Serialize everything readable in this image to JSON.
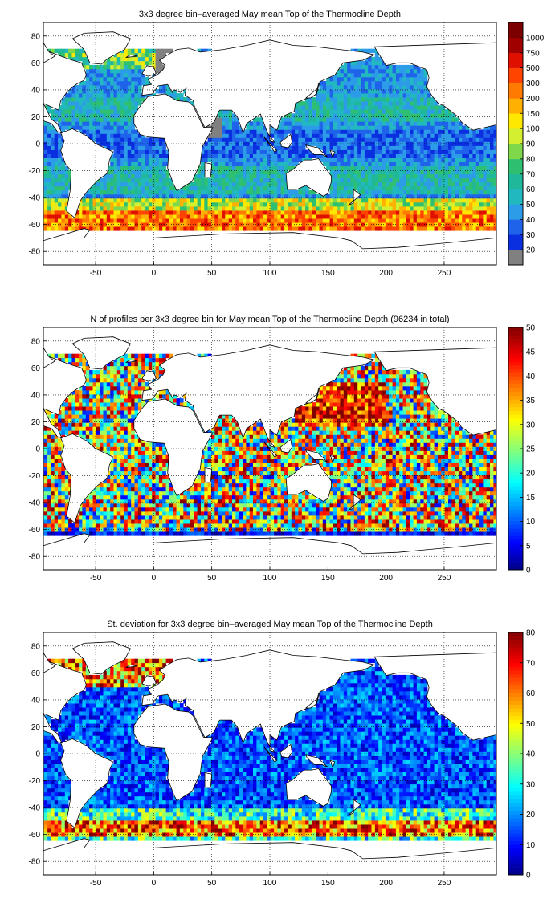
{
  "chart_data": [
    {
      "type": "heatmap",
      "title": "3x3 degree bin–averaged May mean Top of the Thermocline Depth",
      "xlabel": "",
      "ylabel": "",
      "xlim": [
        -95,
        295
      ],
      "ylim": [
        -90,
        90
      ],
      "x_ticks": [
        -50,
        0,
        50,
        100,
        150,
        200,
        250
      ],
      "y_ticks": [
        80,
        60,
        40,
        20,
        0,
        -20,
        -40,
        -60,
        -80
      ],
      "grid": true,
      "colorbar": {
        "scale": "categorical",
        "labels": [
          "20",
          "30",
          "40",
          "50",
          "60",
          "70",
          "80",
          "90",
          "100",
          "150",
          "200",
          "300",
          "500",
          "750",
          "1000"
        ],
        "colors": [
          "#808080",
          "#0a2fe0",
          "#1e63ea",
          "#2c9be8",
          "#22b8c0",
          "#20b89a",
          "#2ec070",
          "#7fd84a",
          "#d4ee30",
          "#ffe800",
          "#ffb000",
          "#ff7a00",
          "#ff4400",
          "#e01000",
          "#a00000",
          "#7c0000"
        ]
      }
    },
    {
      "type": "heatmap",
      "title": "N of profiles per 3x3 degree bin for May mean Top of the Thermocline Depth  (96234 in total)",
      "xlabel": "",
      "ylabel": "",
      "xlim": [
        -95,
        295
      ],
      "ylim": [
        -90,
        90
      ],
      "x_ticks": [
        -50,
        0,
        50,
        100,
        150,
        200,
        250
      ],
      "y_ticks": [
        80,
        60,
        40,
        20,
        0,
        -20,
        -40,
        -60,
        -80
      ],
      "grid": true,
      "colorbar": {
        "scale": "linear",
        "min": 0,
        "max": 50,
        "ticks": [
          0,
          5,
          10,
          15,
          20,
          25,
          30,
          35,
          40,
          45,
          50
        ]
      }
    },
    {
      "type": "heatmap",
      "title": "St. deviation for 3x3 degree bin–averaged May mean Top of the Thermocline Depth",
      "xlabel": "",
      "ylabel": "",
      "xlim": [
        -95,
        295
      ],
      "ylim": [
        -90,
        90
      ],
      "x_ticks": [
        -50,
        0,
        50,
        100,
        150,
        200,
        250
      ],
      "y_ticks": [
        80,
        60,
        40,
        20,
        0,
        -20,
        -40,
        -60,
        -80
      ],
      "grid": true,
      "colorbar": {
        "scale": "linear",
        "min": 0,
        "max": 80,
        "ticks": [
          0,
          10,
          20,
          30,
          40,
          50,
          60,
          70,
          80
        ]
      }
    }
  ]
}
